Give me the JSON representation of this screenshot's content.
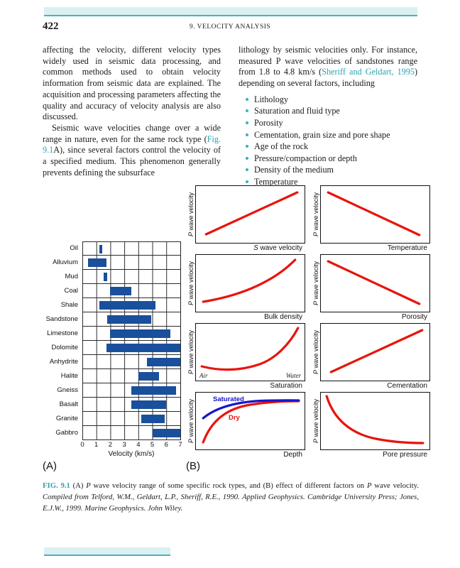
{
  "page": {
    "number": "422",
    "running_head": "9. VELOCITY ANALYSIS"
  },
  "colors": {
    "accent_teal": "#49b2bd",
    "band_fill": "#daf0f2",
    "link_teal": "#2aa3b2",
    "bar_blue": "#1a4f9c",
    "curve_red": "#e8140c",
    "curve_blue": "#1616cc"
  },
  "body": {
    "col1_para1": "affecting the velocity, different velocity types widely used in seismic data processing, and common methods used to obtain velocity information from seismic data are explained. The acquisition and processing parameters affecting the quality and accuracy of velocity analysis are also discussed.",
    "col1_para2_pre": "Seismic wave velocities change over a wide range in nature, even for the same rock type (",
    "col1_para2_link": "Fig. 9.1",
    "col1_para2_post": "A), since several factors control the velocity of a specified medium. This phenomenon generally prevents defining the subsurface",
    "col2_para_pre": "lithology by seismic velocities only. For instance, measured P wave velocities of sandstones range from 1.8 to 4.8 km/s (",
    "col2_para_link": "Sheriff and Geldart, 1995",
    "col2_para_post": ") depending on several factors, including",
    "bullets": [
      "Lithology",
      "Saturation and fluid type",
      "Porosity",
      "Cementation, grain size and pore shape",
      "Age of the rock",
      "Pressure/compaction or depth",
      "Density of the medium",
      "Temperature"
    ]
  },
  "figure_labels": {
    "a": "(A)",
    "b": "(B)"
  },
  "chart_data": [
    {
      "type": "bar",
      "subtype": "horizontal-range-bars",
      "xlabel": "Velocity (km/s)",
      "xlim": [
        0,
        7
      ],
      "xticks": [
        0,
        1,
        2,
        3,
        4,
        5,
        6,
        7
      ],
      "grid": true,
      "bar_color": "#1a4f9c",
      "categories": [
        "Oil",
        "Alluvium",
        "Mud",
        "Coal",
        "Shale",
        "Sandstone",
        "Limestone",
        "Dolomite",
        "Anhydrite",
        "Halite",
        "Gneiss",
        "Basalt",
        "Granite",
        "Gabbro"
      ],
      "ranges": [
        [
          1.2,
          1.4
        ],
        [
          0.4,
          1.7
        ],
        [
          1.5,
          1.8
        ],
        [
          2.0,
          3.5
        ],
        [
          1.2,
          5.2
        ],
        [
          1.8,
          4.9
        ],
        [
          2.0,
          6.3
        ],
        [
          1.7,
          7.0
        ],
        [
          4.6,
          7.0
        ],
        [
          4.0,
          5.5
        ],
        [
          3.5,
          6.7
        ],
        [
          3.5,
          6.0
        ],
        [
          4.2,
          5.9
        ],
        [
          5.0,
          7.0
        ]
      ]
    },
    {
      "type": "line",
      "subtype": "small-multiples-trends",
      "ylabel_italic": "P",
      "ylabel_rest": " wave velocity",
      "panels": [
        {
          "xlabel": "S wave velocity",
          "xlabel_italic_first": true,
          "trend": "linear-up",
          "color": "#e8140c"
        },
        {
          "xlabel": "Temperature",
          "trend": "linear-down",
          "color": "#e8140c"
        },
        {
          "xlabel": "Bulk density",
          "trend": "convex-up",
          "color": "#e8140c"
        },
        {
          "xlabel": "Porosity",
          "trend": "linear-down",
          "color": "#e8140c"
        },
        {
          "xlabel": "Saturation",
          "trend": "dip-then-steep-up",
          "color": "#e8140c",
          "annotations": [
            "Air",
            "Water"
          ]
        },
        {
          "xlabel": "Cementation",
          "trend": "linear-up",
          "color": "#e8140c"
        },
        {
          "xlabel": "Depth",
          "trend": "asymptotic-up",
          "series": [
            {
              "name": "Saturated",
              "color": "#1616cc"
            },
            {
              "name": "Dry",
              "color": "#e8140c"
            }
          ]
        },
        {
          "xlabel": "Pore pressure",
          "trend": "decay-down",
          "color": "#e8140c"
        }
      ]
    }
  ],
  "caption": {
    "label": "FIG. 9.1",
    "seg1": "  (A) ",
    "p1": "P",
    "seg2": " wave velocity range of some specific rock types, and (B) effect of different factors on ",
    "p2": "P",
    "seg3": " wave velocity. ",
    "source": "Compiled from Telford, W.M., Geldart, L.P., Sheriff, R.E., 1990. Applied Geophysics. Cambridge University Press; Jones, E.J.W., 1999. Marine Geophysics. John Wiley."
  }
}
